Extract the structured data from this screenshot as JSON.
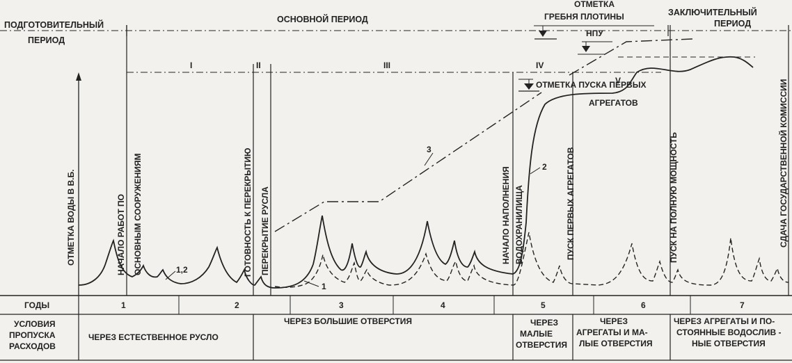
{
  "header": {
    "prep_period": [
      "ПОДГОТОВИТЕЛЬНЫЙ",
      "ПЕРИОД"
    ],
    "main_period": "ОСНОВНОЙ ПЕРИОД",
    "final_period": [
      "ЗАКЛЮЧИТЕЛЬНЫЙ",
      "ПЕРИОД"
    ]
  },
  "stages": [
    "I",
    "II",
    "III",
    "IV",
    "V"
  ],
  "levels": {
    "crest": [
      "ОТМЕТКА",
      "ГРЕБНЯ ПЛОТИНЫ"
    ],
    "npu": "НПУ",
    "first_units": [
      "ОТМЕТКА ПУСКА ПЕРВЫХ",
      "АГРЕГАТОВ"
    ]
  },
  "y_axis_label": "ОТМЕТКА ВОДЫ В В.Б.",
  "events": {
    "start_main": [
      "НАЧАЛО РАБОТ ПО",
      "ОСНОВНЫМ СООРУЖЕНИЯМ"
    ],
    "ready_closure": "ГОТОВНОСТЬ К ПЕРЕКРЫТИЮ",
    "closure": "ПЕРЕКРЫТИЕ РУСЛА",
    "filling_start": [
      "НАЧАЛО НАПОЛНЕНИЯ",
      "ВОДОХРАНИЛИЩА"
    ],
    "first_units": "ПУСК ПЕРВЫХ АГРЕГАТОВ",
    "full_power": "ПУСК НА ПОЛНУЮ МОЩНОСТЬ",
    "commission": "СДАЧА ГОСУДАРСТВЕННОЙ КОМИССИИ"
  },
  "curve_labels": {
    "c12": "1,2",
    "c1": "1",
    "c2": "2",
    "c3": "3"
  },
  "table": {
    "years_label": "ГОДЫ",
    "years": [
      "1",
      "2",
      "3",
      "4",
      "5",
      "6",
      "7"
    ],
    "conditions_label": [
      "УСЛОВИЯ",
      "ПРОПУСКА",
      "РАСХОДОВ"
    ],
    "conditions": [
      [
        "ЧЕРЕЗ ЕСТЕСТВЕННОЕ РУСЛО"
      ],
      [
        "ЧЕРЕЗ БОЛЬШИЕ ОТВЕРСТИЯ"
      ],
      [
        "ЧЕРЕЗ",
        "МАЛЫЕ",
        "ОТВЕРСТИЯ"
      ],
      [
        "ЧЕРЕЗ",
        "АГРЕГАТЫ И МА-",
        "ЛЫЕ ОТВЕРСТИЯ"
      ],
      [
        "ЧЕРЕЗ АГРЕГАТЫ И ПО-",
        "СТОЯННЫЕ ВОДОСЛИВ -",
        "НЫЕ ОТВЕРСТИЯ"
      ]
    ]
  }
}
